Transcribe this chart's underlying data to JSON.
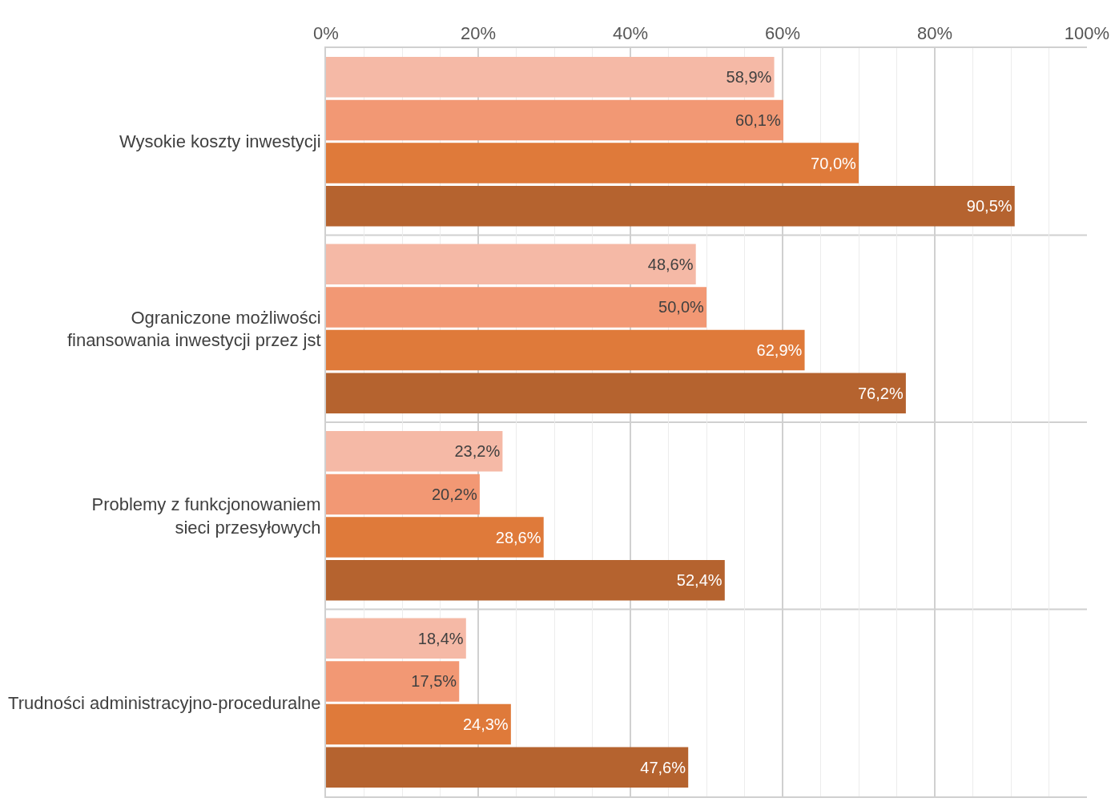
{
  "chart_data": {
    "type": "bar",
    "orientation": "horizontal",
    "categories": [
      "Wysokie koszty inwestycji",
      "Ograniczone możliwości\nfinansowania inwestycji przez jst",
      "Problemy z funkcjonowaniem\nsieci przesyłowych",
      "Trudności administracyjno-proceduralne"
    ],
    "series": [
      {
        "color": "#f5b9a6",
        "values": [
          58.9,
          48.6,
          23.2,
          18.4
        ],
        "value_labels": [
          "58,9%",
          "48,6%",
          "23,2%",
          "18,4%"
        ]
      },
      {
        "color": "#f29874",
        "values": [
          60.1,
          50.0,
          20.2,
          17.5
        ],
        "value_labels": [
          "60,1%",
          "50,0%",
          "20,2%",
          "17,5%"
        ]
      },
      {
        "color": "#df7a3a",
        "values": [
          70.0,
          62.9,
          28.6,
          24.3
        ],
        "value_labels": [
          "70,0%",
          "62,9%",
          "28,6%",
          "24,3%"
        ]
      },
      {
        "color": "#b5632f",
        "values": [
          90.5,
          76.2,
          52.4,
          47.6
        ],
        "value_labels": [
          "90,5%",
          "76,2%",
          "52,4%",
          "47,6%"
        ]
      }
    ],
    "xlim": [
      0,
      100
    ],
    "xticks": [
      {
        "value": 0,
        "label": "0%"
      },
      {
        "value": 20,
        "label": "20%"
      },
      {
        "value": 40,
        "label": "40%"
      },
      {
        "value": 60,
        "label": "60%"
      },
      {
        "value": 80,
        "label": "80%"
      },
      {
        "value": 100,
        "label": "100%"
      }
    ],
    "grid": true
  }
}
